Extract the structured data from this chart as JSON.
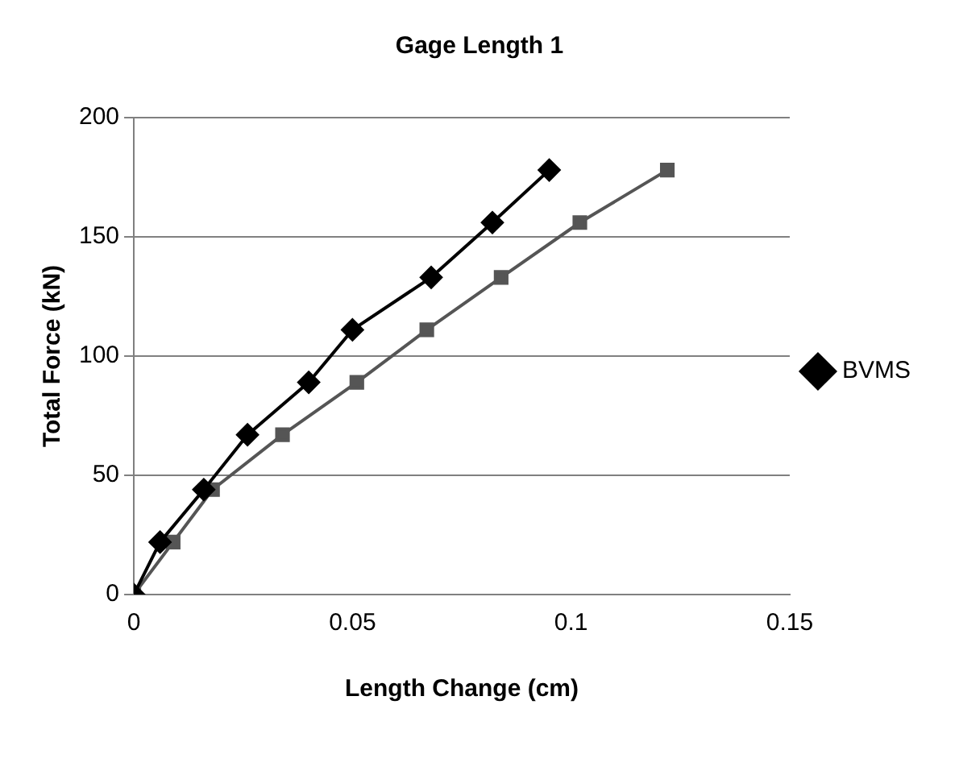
{
  "chart_data": {
    "type": "line",
    "title": "Gage Length 1",
    "xlabel": "Length Change (cm)",
    "ylabel": "Total Force (kN)",
    "xlim": [
      0,
      0.15
    ],
    "xticks": [
      0,
      0.05,
      0.1,
      0.15
    ],
    "ylim": [
      0,
      200
    ],
    "yticks": [
      0,
      50,
      100,
      150,
      200
    ],
    "grid": "y",
    "legend": "right",
    "series": [
      {
        "name": "BVMS",
        "color": "#000000",
        "marker": "diamond",
        "x": [
          0,
          0.006,
          0.016,
          0.026,
          0.04,
          0.05,
          0.068,
          0.082,
          0.095
        ],
        "values": [
          0,
          22,
          44,
          67,
          89,
          111,
          133,
          156,
          178
        ]
      },
      {
        "color": "#555555",
        "marker": "square",
        "x": [
          0,
          0.009,
          0.018,
          0.034,
          0.051,
          0.067,
          0.084,
          0.102,
          0.122
        ],
        "values": [
          0,
          22,
          44,
          67,
          89,
          111,
          133,
          156,
          178
        ]
      }
    ]
  }
}
